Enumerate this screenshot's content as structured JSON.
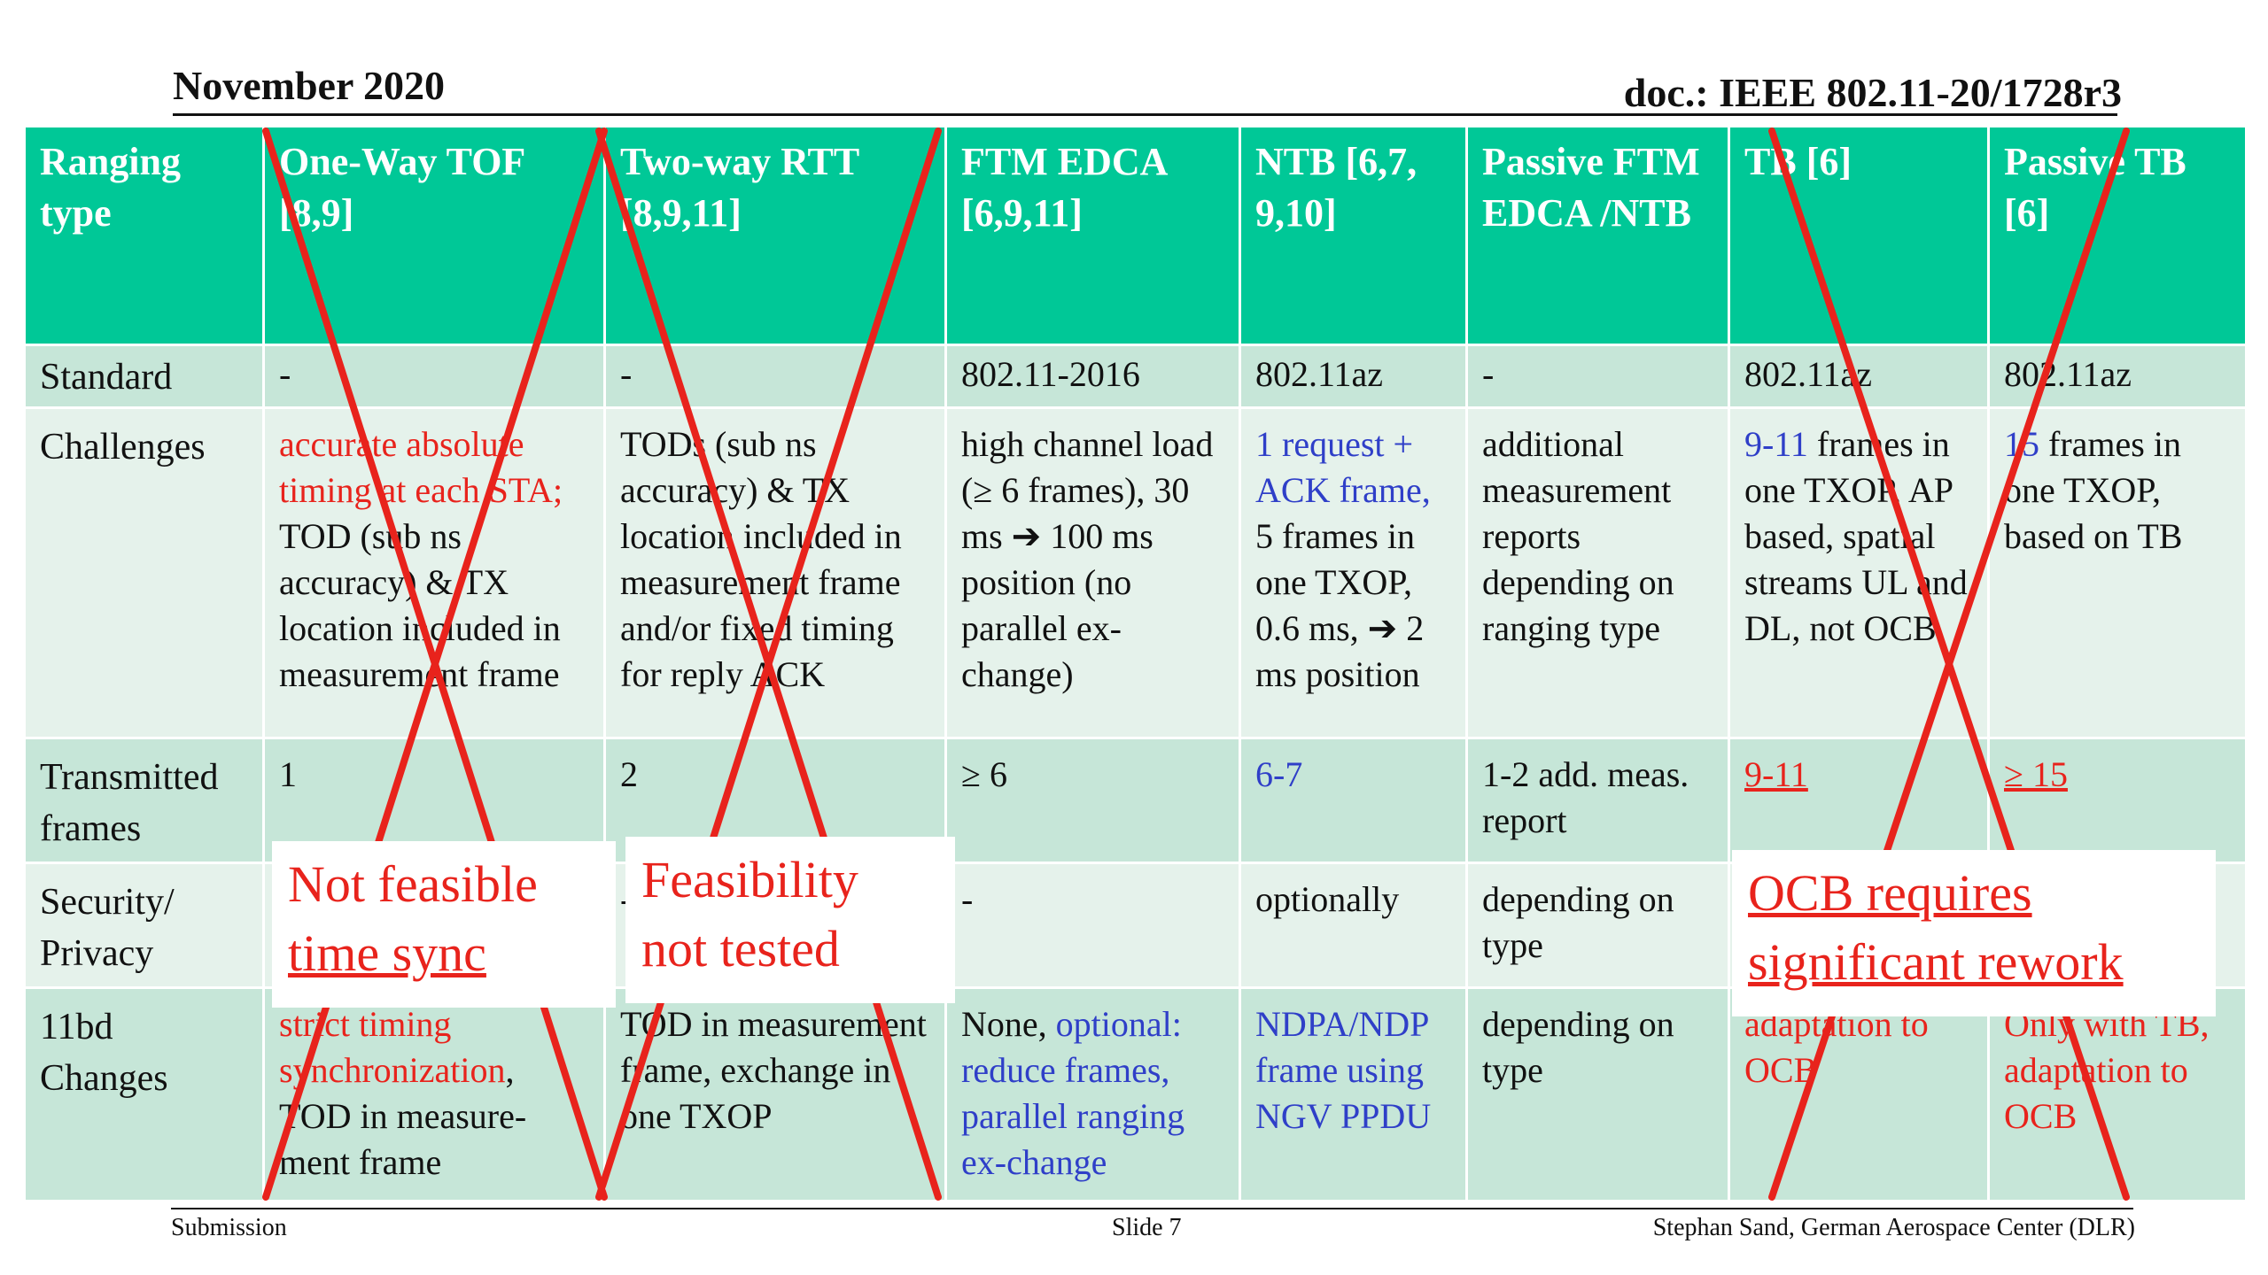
{
  "header": {
    "date": "November 2020",
    "doc": "doc.: IEEE 802.11-20/1728r3"
  },
  "table": {
    "columns": [
      "Ranging type",
      "One-Way TOF [8,9]",
      "Two-way RTT [8,9,11]",
      "FTM EDCA [6,9,11]",
      "NTB [6,7, 9,10]",
      "Passive FTM EDCA /NTB",
      "TB [6]",
      "Passive TB [6]"
    ],
    "standard": {
      "label": "Standard",
      "cells": [
        "-",
        "-",
        "802.11-2016",
        "802.11az",
        "-",
        "802.11az",
        "802.11az"
      ]
    },
    "challenges": {
      "label": "Challenges",
      "c1_red": "accurate absolute timing at each STA;",
      "c1_black": "TOD (sub ns accuracy) & TX location included in measurement frame",
      "c2": "TODs (sub ns accuracy) & TX location included in measurement frame and/or fixed timing for reply ACK",
      "c3": "high channel load (≥ 6 frames), 30 ms ➔ 100 ms position (no parallel ex-change)",
      "c4_blue": "1 request + ACK frame,",
      "c4_black": "5 frames in one TXOP, 0.6 ms, ➔ 2 ms position",
      "c5": "additional measurement reports depending on ranging type",
      "c6_blue": "9-11",
      "c6_black": "frames in one TXOP, AP based, spatial streams UL and DL, not OCB",
      "c7_blue": "15",
      "c7_black": "frames in one TXOP, based on TB"
    },
    "transmitted": {
      "label": "Transmitted frames",
      "cells": [
        "1",
        "2",
        "≥ 6",
        "6-7",
        "1-2  add. meas. report",
        "9-11",
        "≥ 15"
      ]
    },
    "security": {
      "label": "Security/ Privacy",
      "cells": [
        "-",
        "-",
        "-",
        "optionally",
        "depending on type",
        "",
        ""
      ]
    },
    "changes": {
      "label": "11bd Changes",
      "c1_red": "strict timing synchronization",
      "c1_black": ", TOD in measure-ment frame",
      "c2": "TOD in measurement frame, exchange in one TXOP",
      "c3_black": "None,",
      "c3_blue": "optional: reduce frames, parallel ranging ex-change",
      "c4": "NDPA/NDP frame using NGV PPDU",
      "c5": "depending on type",
      "c6": "adaptation to OCB",
      "c7": "Only with TB, adaptation to OCB"
    }
  },
  "notes": {
    "n1_l1": "Not feasible",
    "n1_l2": "time sync",
    "n2_l1": "Feasibility",
    "n2_l2": "not tested",
    "n3_l1": "OCB requires",
    "n3_l2": "significant rework"
  },
  "footer": {
    "left": "Submission",
    "center": "Slide 7",
    "right": "Stephan Sand, German Aerospace Center (DLR)"
  },
  "colors": {
    "header_green": "#00c897",
    "row_dark": "#c6e6d8",
    "row_light": "#e5f2eb",
    "red": "#e8231c",
    "blue": "#2f3fc8"
  }
}
